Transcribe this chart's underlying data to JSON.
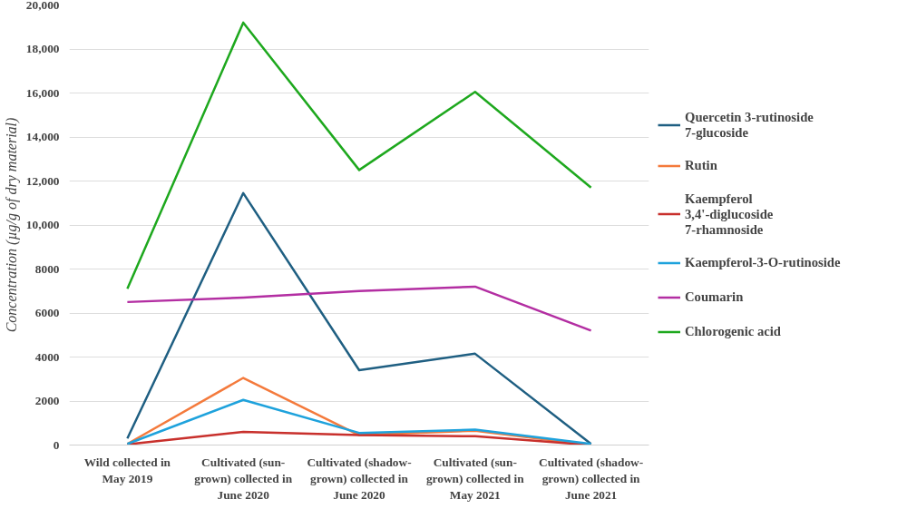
{
  "chart_data": {
    "type": "line",
    "ylabel": "Concentration (µg/g of dry material)",
    "categories": [
      "Wild collected in May 2019",
      "Cultivated (sun-grown) collected in June 2020",
      "Cultivated (shadow-grown) collected in June 2020",
      "Cultivated (sun-grown) collected in May 2021",
      "Cultivated (shadow-grown) collected in June 2021"
    ],
    "ylim": [
      0,
      20000
    ],
    "yticks": [
      0,
      2000,
      4000,
      6000,
      8000,
      {
        "value": 10000,
        "label": "10,000"
      },
      {
        "value": 12000,
        "label": "12,000"
      },
      {
        "value": 14000,
        "label": "14,000"
      },
      {
        "value": 16000,
        "label": "16,000"
      },
      {
        "value": 18000,
        "label": "18,000"
      },
      {
        "value": 20000,
        "label": "20,000"
      }
    ],
    "grid": "y",
    "legend": "right",
    "marker": "none",
    "line_style": "solid",
    "series": [
      {
        "name": "Quercetin 3-rutinoside 7-glucoside",
        "color": "#1f5f82",
        "values": [
          300,
          11450,
          3400,
          4150,
          50
        ]
      },
      {
        "name": "Rutin",
        "color": "#f47a3c",
        "values": [
          50,
          3050,
          450,
          650,
          0
        ]
      },
      {
        "name": "Kaempferol 3,4'-diglucoside 7-rhamnoside",
        "color": "#c8302c",
        "values": [
          30,
          600,
          450,
          400,
          0
        ]
      },
      {
        "name": "Kaempferol-3-O-rutinoside",
        "color": "#1ea2dc",
        "values": [
          50,
          2050,
          550,
          700,
          50
        ]
      },
      {
        "name": "Coumarin",
        "color": "#b32ea2",
        "values": [
          6500,
          6700,
          7000,
          7200,
          5200
        ]
      },
      {
        "name": "Chlorogenic acid",
        "color": "#1ea81e",
        "values": [
          7100,
          19200,
          12500,
          16050,
          11700
        ]
      }
    ]
  }
}
